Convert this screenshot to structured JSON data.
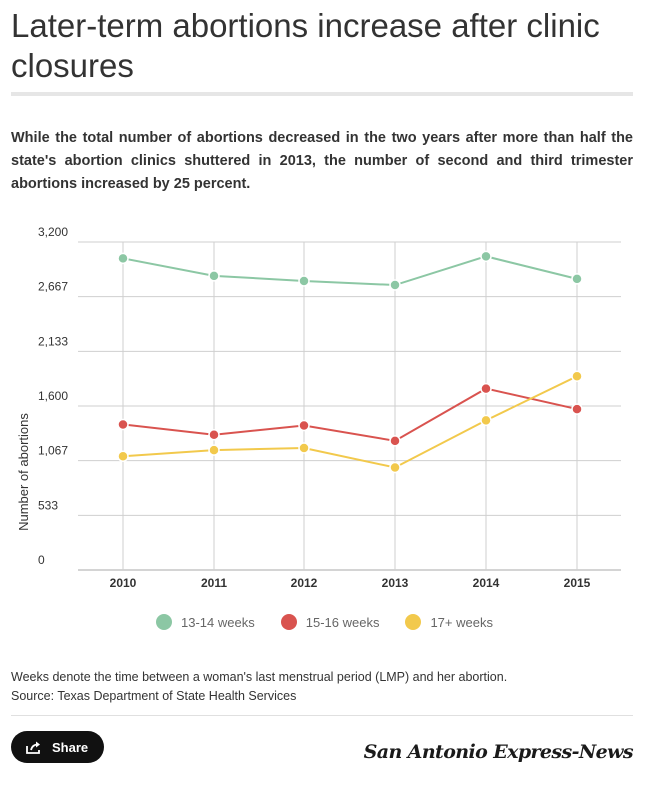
{
  "header": {
    "title": "Later-term abortions increase after clinic closures",
    "subtitle": "While the total number of abortions decreased in the two years after more than half the state's abortion clinics shuttered in 2013, the number of second and third trimester abortions increased by 25 percent."
  },
  "chart_data": {
    "type": "line",
    "title": "Later-term abortions increase after clinic closures",
    "ylabel": "Number of abortions",
    "xlabel": "",
    "x": [
      "2010",
      "2011",
      "2012",
      "2013",
      "2014",
      "2015"
    ],
    "ylim": [
      0,
      3200
    ],
    "yticks": [
      "0",
      "533",
      "1,067",
      "1,600",
      "2,133",
      "2,667",
      "3,200"
    ],
    "ytick_values": [
      0,
      533.33,
      1066.67,
      1600,
      2133.33,
      2666.67,
      3200
    ],
    "grid": true,
    "legend": "bottom",
    "series": [
      {
        "name": "13-14 weeks",
        "color": "#8cc7a4",
        "values": [
          3040,
          2870,
          2820,
          2780,
          3060,
          2840
        ]
      },
      {
        "name": "15-16 weeks",
        "color": "#d9534f",
        "values": [
          1420,
          1320,
          1410,
          1260,
          1770,
          1570
        ]
      },
      {
        "name": "17+ weeks",
        "color": "#f2c94c",
        "values": [
          1110,
          1170,
          1190,
          1000,
          1460,
          1890
        ]
      }
    ]
  },
  "footer": {
    "note": "Weeks denote the time between a woman's last menstrual period (LMP) and her abortion.",
    "source": "Source: Texas Department of State Health Services",
    "share_label": "Share",
    "brand": "San Antonio Express-News"
  },
  "icons": {
    "share": "share-icon"
  }
}
